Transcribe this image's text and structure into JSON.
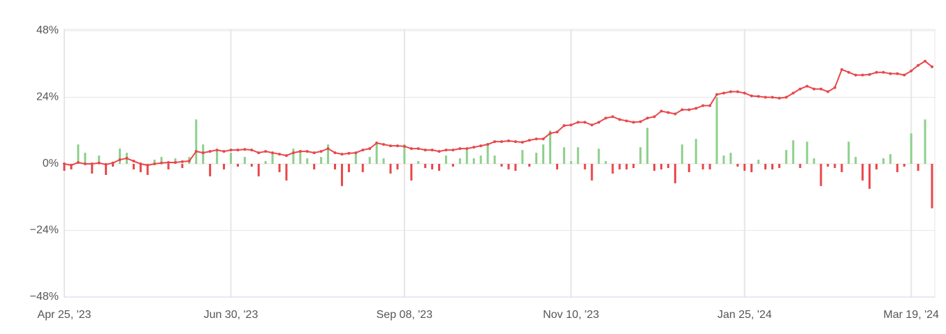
{
  "chart_data": {
    "type": "combo",
    "categories": [
      "Apr 25, '23",
      null,
      null,
      null,
      null,
      null,
      null,
      null,
      null,
      null,
      null,
      null,
      null,
      null,
      null,
      null,
      null,
      null,
      null,
      null,
      null,
      null,
      null,
      null,
      "Jun 30, '23",
      null,
      null,
      null,
      null,
      null,
      null,
      null,
      null,
      null,
      null,
      null,
      null,
      null,
      null,
      null,
      null,
      null,
      null,
      null,
      null,
      null,
      null,
      null,
      null,
      "Sep 08, '23",
      null,
      null,
      null,
      null,
      null,
      null,
      null,
      null,
      null,
      null,
      null,
      null,
      null,
      null,
      null,
      null,
      null,
      null,
      null,
      null,
      null,
      null,
      null,
      "Nov 10, '23",
      null,
      null,
      null,
      null,
      null,
      null,
      null,
      null,
      null,
      null,
      null,
      null,
      null,
      null,
      null,
      null,
      null,
      null,
      null,
      null,
      null,
      null,
      null,
      null,
      "Jan 25, '24",
      null,
      null,
      null,
      null,
      null,
      null,
      null,
      null,
      null,
      null,
      null,
      null,
      null,
      null,
      null,
      null,
      null,
      null,
      null,
      null,
      null,
      null,
      null,
      "Mar 19, '24",
      null,
      null,
      null
    ],
    "line": {
      "color": "#e8474b",
      "values": [
        0,
        -0.5,
        0.5,
        0,
        0,
        0.3,
        -0.2,
        0.3,
        1.5,
        2,
        1,
        0,
        -0.5,
        0,
        0.3,
        0.5,
        0.5,
        0.8,
        1,
        4.5,
        4,
        4.5,
        5,
        4.5,
        5,
        5,
        5.2,
        5,
        4,
        4.5,
        4,
        3.5,
        3,
        4,
        4.5,
        4.5,
        4,
        4.5,
        5.5,
        4,
        3.5,
        3.8,
        4,
        5,
        5.5,
        7.5,
        7,
        6.5,
        6.5,
        6.3,
        5.5,
        5.5,
        5,
        5,
        4.5,
        5,
        5,
        5.5,
        5.5,
        6,
        6.5,
        7,
        8,
        8,
        8.3,
        8,
        7.8,
        8.5,
        9,
        9,
        11,
        11.5,
        13.8,
        14,
        15,
        15,
        14,
        15,
        16.5,
        17,
        16,
        15.5,
        15,
        15.2,
        16.5,
        17,
        19,
        18.5,
        18,
        19.5,
        19.5,
        20,
        21,
        21,
        25,
        25.5,
        26,
        26,
        25.5,
        24.5,
        24.3,
        24,
        24,
        23.7,
        24,
        25.5,
        27,
        28,
        27,
        27,
        26,
        27.5,
        34,
        33,
        32,
        32,
        32.2,
        33,
        33,
        32.5,
        32.5,
        32,
        33.5,
        35.5,
        37,
        35
      ]
    },
    "bars": {
      "positive_color": "#8dd08a",
      "negative_color": "#e8474b",
      "values": [
        -2.5,
        -2,
        7,
        4,
        -3.5,
        3,
        -4,
        -1,
        5.5,
        4,
        -2,
        -3,
        -4,
        1.5,
        2.5,
        -2,
        2,
        -1.5,
        2.5,
        16,
        7,
        -4.5,
        5,
        -2,
        4,
        -1,
        2.5,
        -1,
        -4.5,
        1,
        4,
        -3,
        -6,
        5.5,
        5,
        2,
        -2,
        2.5,
        7,
        -2,
        -8,
        -3,
        4,
        -3,
        2.5,
        8,
        2,
        -3.5,
        -2,
        7,
        -6,
        1,
        -1.5,
        -2,
        -2.5,
        3,
        -1,
        2,
        5,
        2,
        3,
        7.5,
        3,
        -1,
        -2,
        -2.5,
        5,
        -1,
        4,
        7,
        12,
        -2,
        6,
        1,
        6,
        -2,
        -6,
        5.5,
        1,
        -3.5,
        -2,
        -2,
        -1.5,
        6,
        13,
        -2.5,
        -2,
        -1.5,
        -7,
        7,
        -3,
        9,
        -2,
        -2,
        24,
        3,
        4,
        -1,
        -2.5,
        -3,
        1.5,
        -2,
        -2,
        -1.5,
        5,
        8.5,
        -1.5,
        8,
        2,
        -8,
        -1,
        -1.5,
        -3,
        8,
        2.5,
        -6,
        -9,
        -2,
        2,
        3.5,
        -3,
        -1,
        11,
        -2.5,
        16,
        -16
      ]
    },
    "ylim": [
      -48,
      48
    ],
    "yticks": [
      {
        "value": 48,
        "label": "48%"
      },
      {
        "value": 24,
        "label": "24%"
      },
      {
        "value": 0,
        "label": "0%"
      },
      {
        "value": -24,
        "label": "−24%"
      },
      {
        "value": -48,
        "label": "−48%"
      }
    ],
    "grid": true
  }
}
